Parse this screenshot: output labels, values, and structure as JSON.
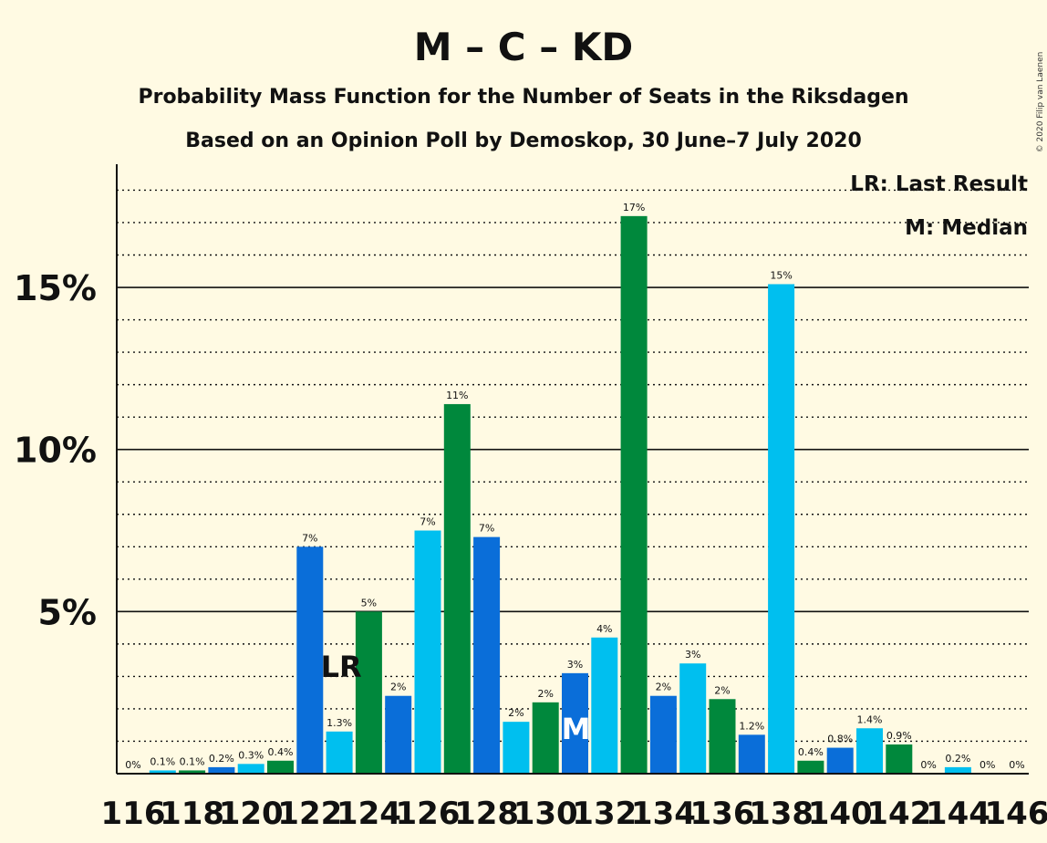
{
  "chart_data": {
    "type": "bar",
    "title": "M – C – KD",
    "subtitle": "Probability Mass Function for the Number of Seats in the Riksdagen",
    "subtitle2": "Based on an Opinion Poll by Demoskop, 30 June–7 July 2020",
    "copyright": "© 2020 Filip van Laenen",
    "legend": [
      "LR: Last Result",
      "M: Median"
    ],
    "legend_position": "top-right",
    "xlabel": "",
    "ylabel": "",
    "ylim": [
      0,
      18.8
    ],
    "y_ticks": [
      {
        "value": 5,
        "label": "5%"
      },
      {
        "value": 10,
        "label": "10%"
      },
      {
        "value": 15,
        "label": "15%"
      }
    ],
    "x_tick_labels": [
      "116",
      "118",
      "120",
      "122",
      "124",
      "126",
      "128",
      "130",
      "132",
      "134",
      "136",
      "138",
      "140",
      "142",
      "144",
      "146"
    ],
    "grid": true,
    "colors": {
      "blue": "#0A6ED9",
      "cyan": "#00BFEF",
      "green": "#00883C"
    },
    "markers": [
      {
        "seat": 123,
        "label": "LR"
      },
      {
        "seat": 131,
        "label": "M"
      }
    ],
    "bars": [
      {
        "seat": 116,
        "value": 0.0,
        "label": "0%",
        "color": "blue"
      },
      {
        "seat": 117,
        "value": 0.1,
        "label": "0.1%",
        "color": "cyan"
      },
      {
        "seat": 118,
        "value": 0.1,
        "label": "0.1%",
        "color": "green"
      },
      {
        "seat": 119,
        "value": 0.2,
        "label": "0.2%",
        "color": "blue"
      },
      {
        "seat": 120,
        "value": 0.3,
        "label": "0.3%",
        "color": "cyan"
      },
      {
        "seat": 121,
        "value": 0.4,
        "label": "0.4%",
        "color": "green"
      },
      {
        "seat": 122,
        "value": 7.0,
        "label": "7%",
        "color": "blue"
      },
      {
        "seat": 123,
        "value": 1.3,
        "label": "1.3%",
        "color": "cyan"
      },
      {
        "seat": 124,
        "value": 5.0,
        "label": "5%",
        "color": "green"
      },
      {
        "seat": 125,
        "value": 2.4,
        "label": "2%",
        "color": "blue"
      },
      {
        "seat": 126,
        "value": 7.5,
        "label": "7%",
        "color": "cyan"
      },
      {
        "seat": 127,
        "value": 11.4,
        "label": "11%",
        "color": "green"
      },
      {
        "seat": 128,
        "value": 7.3,
        "label": "7%",
        "color": "blue"
      },
      {
        "seat": 129,
        "value": 1.6,
        "label": "2%",
        "color": "cyan"
      },
      {
        "seat": 130,
        "value": 2.2,
        "label": "2%",
        "color": "green"
      },
      {
        "seat": 131,
        "value": 3.1,
        "label": "3%",
        "color": "blue"
      },
      {
        "seat": 132,
        "value": 4.2,
        "label": "4%",
        "color": "cyan"
      },
      {
        "seat": 133,
        "value": 17.2,
        "label": "17%",
        "color": "green"
      },
      {
        "seat": 134,
        "value": 2.4,
        "label": "2%",
        "color": "blue"
      },
      {
        "seat": 135,
        "value": 3.4,
        "label": "3%",
        "color": "cyan"
      },
      {
        "seat": 136,
        "value": 2.3,
        "label": "2%",
        "color": "green"
      },
      {
        "seat": 137,
        "value": 1.2,
        "label": "1.2%",
        "color": "blue"
      },
      {
        "seat": 138,
        "value": 15.1,
        "label": "15%",
        "color": "cyan"
      },
      {
        "seat": 139,
        "value": 0.4,
        "label": "0.4%",
        "color": "green"
      },
      {
        "seat": 140,
        "value": 0.8,
        "label": "0.8%",
        "color": "blue"
      },
      {
        "seat": 141,
        "value": 1.4,
        "label": "1.4%",
        "color": "cyan"
      },
      {
        "seat": 142,
        "value": 0.9,
        "label": "0.9%",
        "color": "green"
      },
      {
        "seat": 143,
        "value": 0.0,
        "label": "0%",
        "color": "blue"
      },
      {
        "seat": 144,
        "value": 0.2,
        "label": "0.2%",
        "color": "cyan"
      },
      {
        "seat": 145,
        "value": 0.0,
        "label": "0%",
        "color": "green"
      },
      {
        "seat": 146,
        "value": 0.0,
        "label": "0%",
        "color": "blue"
      }
    ]
  }
}
